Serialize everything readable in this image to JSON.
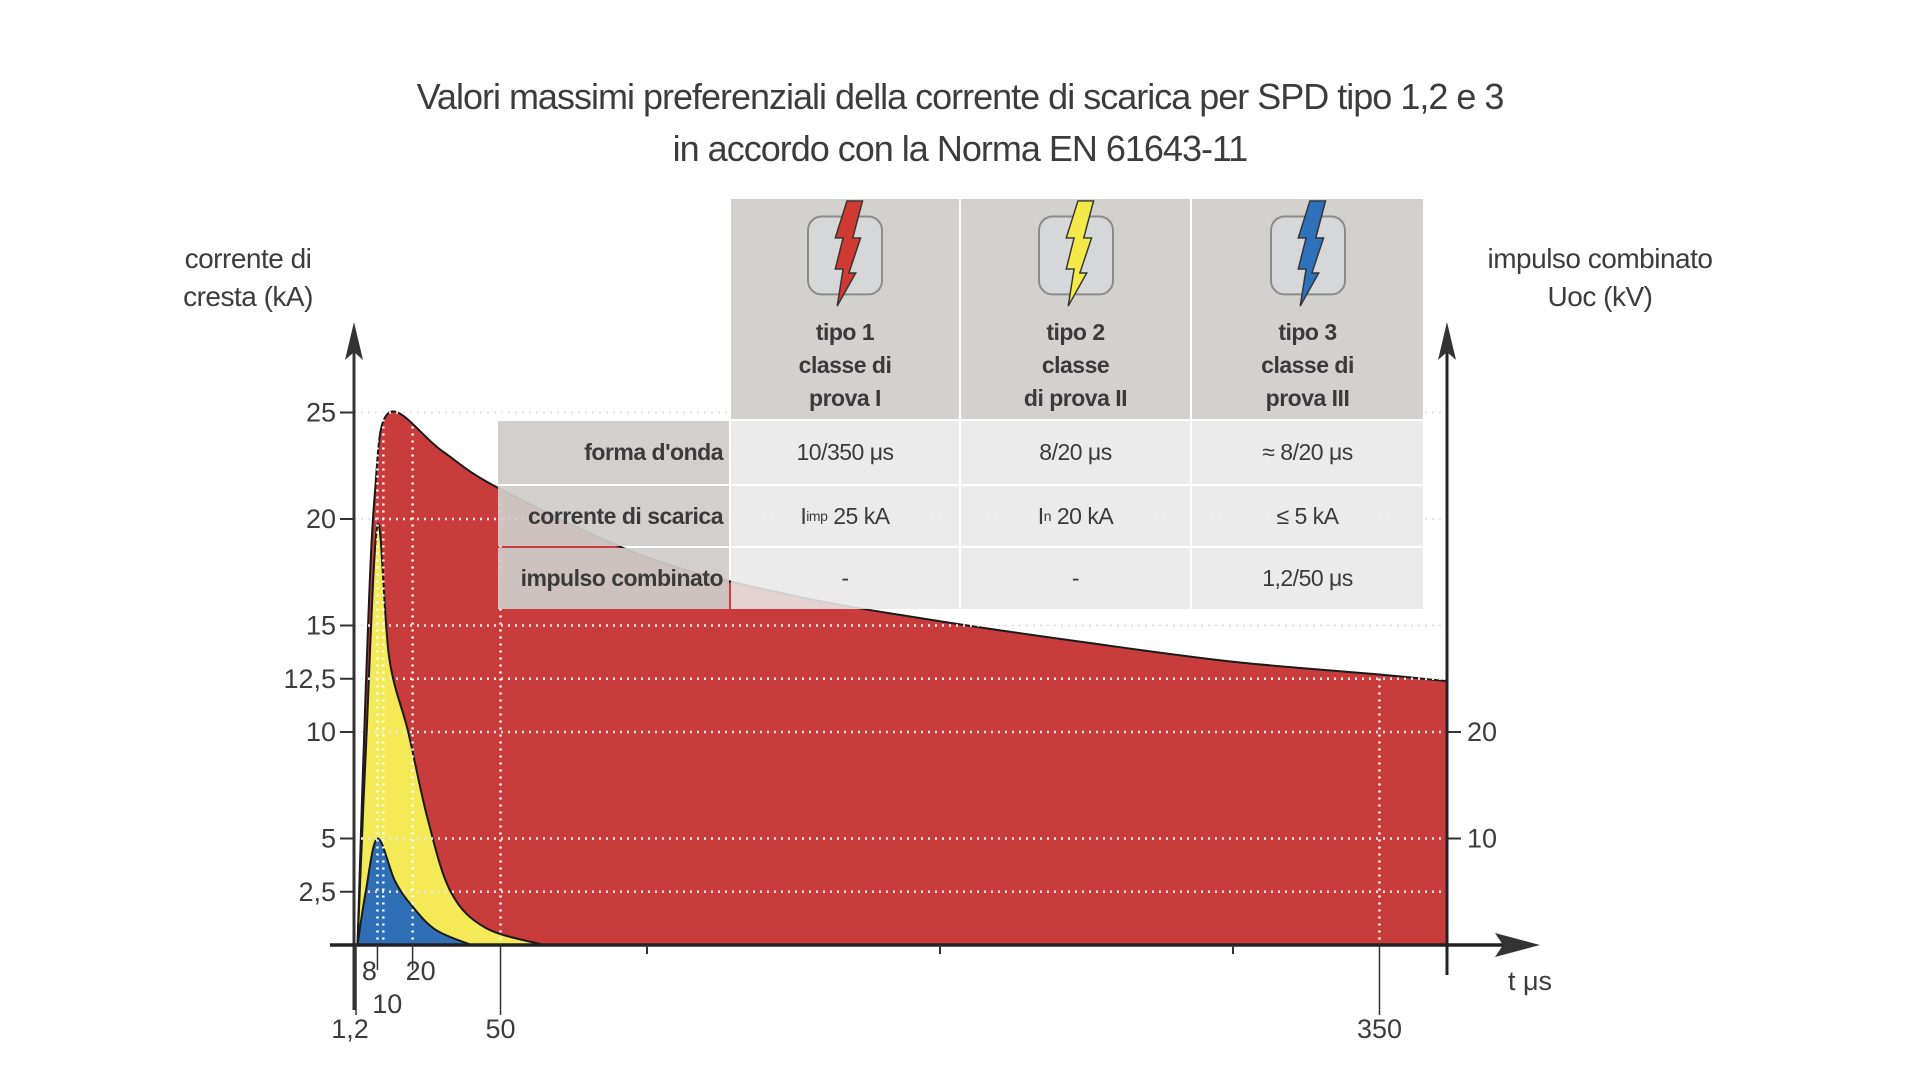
{
  "title": {
    "line1": "Valori massimi preferenziali della corrente di scarica per SPD tipo 1,2 e 3",
    "line2": "in accordo con la Norma EN 61643-11"
  },
  "table": {
    "columns": [
      {
        "icon": "red-lightning-icon",
        "color": "#d03a32",
        "line1": "tipo 1",
        "line2": "classe di",
        "line3": "prova I"
      },
      {
        "icon": "yellow-lightning-icon",
        "color": "#f3ea4a",
        "line1": "tipo 2",
        "line2": "classe",
        "line3": "di prova II"
      },
      {
        "icon": "blue-lightning-icon",
        "color": "#2e72bb",
        "line1": "tipo 3",
        "line2": "classe di",
        "line3": "prova III"
      }
    ],
    "rows": [
      {
        "label": "forma d'onda",
        "values": [
          "10/350 μs",
          "8/20 μs",
          "≈ 8/20 μs"
        ]
      },
      {
        "label": "corrente di scarica",
        "values": [
          [
            "I",
            "imp",
            " 25 kA"
          ],
          [
            "I",
            "n",
            " 20 kA"
          ],
          [
            "",
            "",
            "≤ 5 kA"
          ]
        ]
      },
      {
        "label": "impulso combinato",
        "values": [
          "-",
          "-",
          "1,2/50 μs"
        ]
      }
    ]
  },
  "chart_data": {
    "type": "area",
    "title": "Valori massimi preferenziali della corrente di scarica per SPD tipo 1,2 e 3 in accordo con la Norma EN 61643-11",
    "xlabel": "t μs",
    "ylabel": "corrente di cresta (kA)",
    "y2label": "impulso combinato Uoc (kV)",
    "ylim": [
      0,
      25
    ],
    "y2lim": [
      0,
      50
    ],
    "xlim": [
      0,
      372
    ],
    "y_ticks": [
      {
        "value": 25,
        "label": "25"
      },
      {
        "value": 20,
        "label": "20"
      },
      {
        "value": 15,
        "label": "15"
      },
      {
        "value": 12.5,
        "label": "12,5"
      },
      {
        "value": 10,
        "label": "10"
      },
      {
        "value": 5,
        "label": "5"
      },
      {
        "value": 2.5,
        "label": "2,5"
      }
    ],
    "y2_ticks": [
      {
        "value": 20,
        "label": "20"
      },
      {
        "value": 10,
        "label": "10"
      }
    ],
    "x_ticks": [
      {
        "value": 1.2,
        "label": "1,2"
      },
      {
        "value": 8,
        "label": "8"
      },
      {
        "value": 10,
        "label": "10"
      },
      {
        "value": 20,
        "label": "20"
      },
      {
        "value": 50,
        "label": "50"
      },
      {
        "value": 350,
        "label": "350"
      }
    ],
    "grid": "dotted",
    "series": [
      {
        "color": "#c83c3c",
        "points": [
          [
            1.2,
            0
          ],
          [
            4,
            12
          ],
          [
            7,
            21
          ],
          [
            12,
            25
          ],
          [
            30,
            23.2
          ],
          [
            50,
            21.4
          ],
          [
            100,
            18.2
          ],
          [
            150,
            16.4
          ],
          [
            200,
            15.2
          ],
          [
            250,
            14.2
          ],
          [
            300,
            13.3
          ],
          [
            350,
            12.7
          ],
          [
            372,
            12.4
          ]
        ]
      },
      {
        "color": "#f4ea58",
        "points": [
          [
            1.2,
            0
          ],
          [
            4,
            9
          ],
          [
            8,
            19.7
          ],
          [
            12,
            13.5
          ],
          [
            18.5,
            10
          ],
          [
            25,
            6
          ],
          [
            33,
            2.5
          ],
          [
            45,
            0.8
          ],
          [
            65,
            0
          ]
        ]
      },
      {
        "color": "#2f6fb6",
        "points": [
          [
            1.2,
            0
          ],
          [
            4,
            2.5
          ],
          [
            8,
            5
          ],
          [
            14,
            3
          ],
          [
            20,
            1.8
          ],
          [
            28,
            0.7
          ],
          [
            40,
            0
          ]
        ]
      }
    ]
  }
}
